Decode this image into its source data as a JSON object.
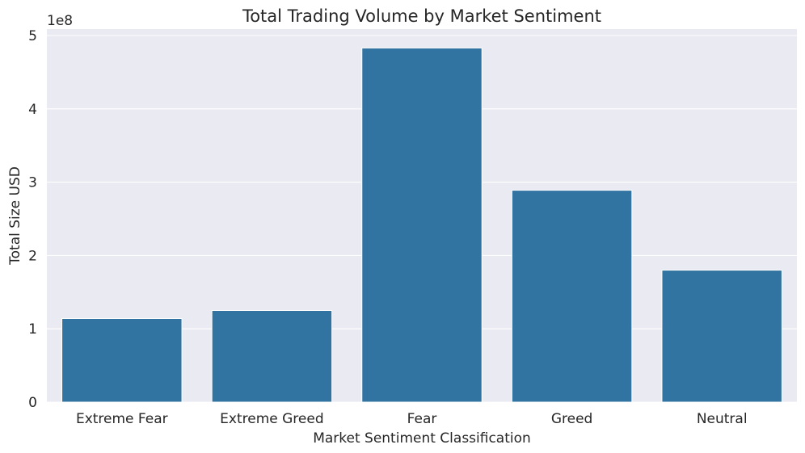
{
  "chart_data": {
    "type": "bar",
    "title": "Total Trading Volume by Market Sentiment",
    "xlabel": "Market Sentiment Classification",
    "ylabel": "Total Size USD",
    "y_offset_label": "1e8",
    "y_scale": 100000000,
    "categories": [
      "Extreme Fear",
      "Extreme Greed",
      "Fear",
      "Greed",
      "Neutral"
    ],
    "values": [
      114000000,
      125000000,
      483000000,
      289000000,
      180000000
    ],
    "ylim": [
      0,
      500000000
    ],
    "yticks": [
      0,
      100000000,
      200000000,
      300000000,
      400000000,
      500000000
    ],
    "ytick_labels": [
      "0",
      "1",
      "2",
      "3",
      "4",
      "5"
    ],
    "grid": true,
    "colors": {
      "bar": "#3274a1",
      "plot_background": "#eaeaf2",
      "grid": "#ffffff"
    }
  }
}
